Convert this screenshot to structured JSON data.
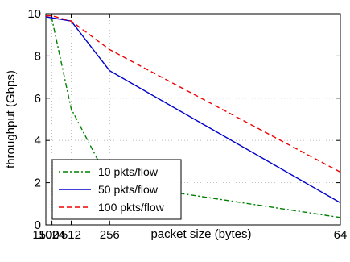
{
  "chart_data": {
    "type": "line",
    "xlabel": "packet size (bytes)",
    "ylabel": "throughput (Gbps)",
    "ylim": [
      0,
      10
    ],
    "y_ticks": [
      0,
      2,
      4,
      6,
      8,
      10
    ],
    "categories": [
      "1500",
      "1024",
      "512",
      "256",
      "64"
    ],
    "x_scale": "reciprocal",
    "grid": "dotted",
    "legend_position": "bottom-left",
    "series": [
      {
        "name": "10 pkts/flow",
        "style": "dash-dot",
        "color": "#008000",
        "values": [
          9.75,
          9.75,
          5.5,
          2.0,
          0.35
        ]
      },
      {
        "name": "50 pkts/flow",
        "style": "solid",
        "color": "#0000cc",
        "values": [
          9.85,
          9.8,
          9.65,
          7.3,
          1.05
        ]
      },
      {
        "name": "100 pkts/flow",
        "style": "dashed",
        "color": "#ee0000",
        "values": [
          9.9,
          9.9,
          9.65,
          8.3,
          2.5
        ]
      }
    ]
  }
}
